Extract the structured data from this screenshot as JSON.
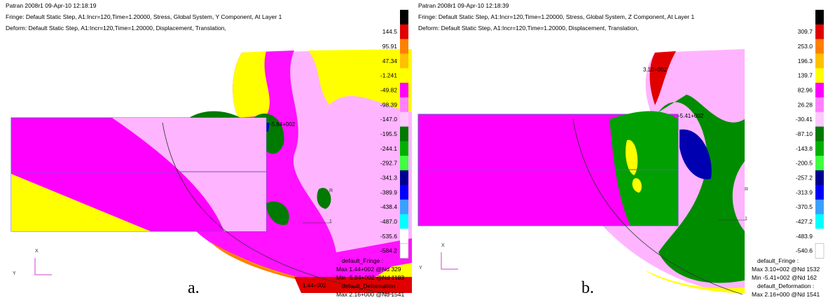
{
  "panels": [
    {
      "header": [
        "Patran 2008r1 09-Apr-10 12:18:19",
        "Fringe: Default Static Step, A1:Incr=120,Time=1.20000, Stress, Global System, Y Component, At Layer 1",
        "Deform: Default Static Step, A1:Incr=120,Time=1.20000, Displacement, Translation,"
      ],
      "legend": [
        "144.5",
        "95.91",
        "47.34",
        "-1.241",
        "-49.82",
        "-98.39",
        "-147.0",
        "-195.5",
        "-244.1",
        "-292.7",
        "-341.3",
        "-389.9",
        "-438.4",
        "-487.0",
        "-535.6",
        "-584.2"
      ],
      "info": [
        "default_Fringe :",
        "Max 1.44+002 @Nd 329",
        "Min -5.84+002 @Nd 1183",
        "default_Deformation :",
        "Max 2.16+000 @Nd 1541"
      ],
      "annotations": [
        "-5.84+002",
        "1.44+002"
      ],
      "triad": [
        "X",
        "Y",
        "R",
        "1"
      ],
      "caption": "a."
    },
    {
      "header": [
        "Patran 2008r1 09-Apr-10 12:18:39",
        "Fringe: Default Static Step, A1:Incr=120,Time=1.20000, Stress, Global System, Z Component, At Layer 1",
        "Deform: Default Static Step, A1:Incr=120,Time=1.20000, Displacement, Translation,"
      ],
      "legend": [
        "309.7",
        "253.0",
        "196.3",
        "139.7",
        "82.96",
        "26.28",
        "-30.41",
        "-87.10",
        "-143.8",
        "-200.5",
        "-257.2",
        "-313.9",
        "-370.5",
        "-427.2",
        "-483.9",
        "-540.6"
      ],
      "info": [
        "default_Fringe :",
        "Max 3.10+002 @Nd 1532",
        "Min -5.41+002 @Nd 162",
        "default_Deformation :",
        "Max 2.16+000 @Nd 1541"
      ],
      "annotations": [
        "3.10+002",
        "-5.41+002"
      ],
      "triad": [
        "X",
        "Y",
        "R",
        "1"
      ],
      "caption": "b."
    }
  ]
}
